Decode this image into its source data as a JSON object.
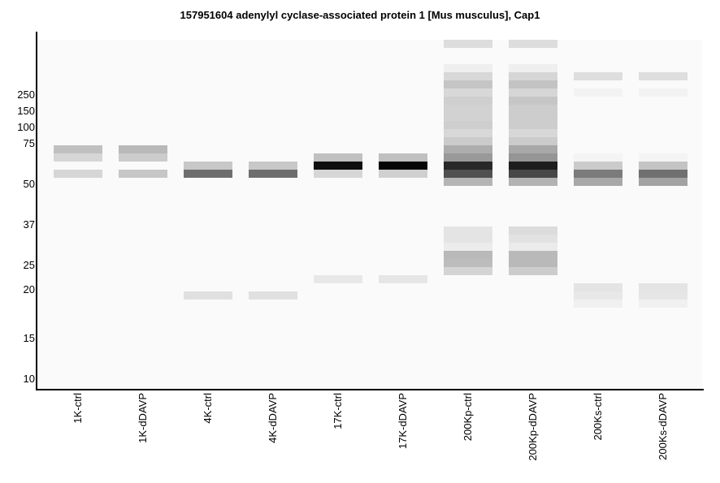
{
  "chart_data": {
    "type": "heatmap",
    "subtype": "virtual-gel",
    "title": "157951604 adenylyl cyclase-associated protein 1 [Mus musculus], Cap1",
    "xlabel": "",
    "ylabel": "",
    "slice_units": "gel slice index (0 = top)",
    "markers": [
      {
        "label": "250",
        "slice": 6.8
      },
      {
        "label": "150",
        "slice": 8.8
      },
      {
        "label": "100",
        "slice": 10.8
      },
      {
        "label": "75",
        "slice": 12.8
      },
      {
        "label": "50",
        "slice": 17.8
      },
      {
        "label": "37",
        "slice": 22.8
      },
      {
        "label": "25",
        "slice": 27.8
      },
      {
        "label": "20",
        "slice": 30.8
      },
      {
        "label": "15",
        "slice": 36.8
      },
      {
        "label": "10",
        "slice": 41.8
      }
    ],
    "lanes": [
      {
        "label": "1K-ctrl",
        "bands": [
          [
            13,
            "#c0c0c0"
          ],
          [
            14,
            "#d6d6d6"
          ],
          [
            16,
            "#d6d6d6"
          ]
        ]
      },
      {
        "label": "1K-dDAVP",
        "bands": [
          [
            13,
            "#b9b9b9"
          ],
          [
            14,
            "#cccccc"
          ],
          [
            16,
            "#c6c6c6"
          ]
        ]
      },
      {
        "label": "4K-ctrl",
        "bands": [
          [
            15,
            "#c8c8c8"
          ],
          [
            16,
            "#6e6e6e"
          ],
          [
            31,
            "#e0e0e0"
          ]
        ]
      },
      {
        "label": "4K-dDAVP",
        "bands": [
          [
            15,
            "#c8c8c8"
          ],
          [
            16,
            "#6e6e6e"
          ],
          [
            31,
            "#e0e0e0"
          ]
        ]
      },
      {
        "label": "17K-ctrl",
        "bands": [
          [
            14,
            "#c0c0c0"
          ],
          [
            15,
            "#0f0f0f"
          ],
          [
            16,
            "#d6d6d6"
          ],
          [
            29,
            "#e8e8e8"
          ]
        ]
      },
      {
        "label": "17K-dDAVP",
        "bands": [
          [
            14,
            "#c0c0c0"
          ],
          [
            15,
            "#050505"
          ],
          [
            16,
            "#d0d0d0"
          ],
          [
            29,
            "#e6e6e6"
          ]
        ]
      },
      {
        "label": "200Kp-ctrl",
        "bands": [
          [
            0,
            "#dddddd"
          ],
          [
            3,
            "#efefef"
          ],
          [
            4,
            "#d8d8d8"
          ],
          [
            5,
            "#c5c5c5"
          ],
          [
            6,
            "#d8d8d8"
          ],
          [
            7,
            "#cfcfcf"
          ],
          [
            8,
            "#d2d2d2"
          ],
          [
            9,
            "#d2d2d2"
          ],
          [
            10,
            "#cecece"
          ],
          [
            11,
            "#d8d8d8"
          ],
          [
            12,
            "#cbcbcb"
          ],
          [
            13,
            "#adadad"
          ],
          [
            14,
            "#999999"
          ],
          [
            15,
            "#282828"
          ],
          [
            16,
            "#505050"
          ],
          [
            17,
            "#b4b4b4"
          ],
          [
            23,
            "#e4e4e4"
          ],
          [
            24,
            "#e4e4e4"
          ],
          [
            25,
            "#ececec"
          ],
          [
            26,
            "#b9b9b9"
          ],
          [
            27,
            "#bcbcbc"
          ],
          [
            28,
            "#d4d4d4"
          ]
        ]
      },
      {
        "label": "200Kp-dDAVP",
        "bands": [
          [
            0,
            "#dddddd"
          ],
          [
            3,
            "#efefef"
          ],
          [
            4,
            "#d6d6d6"
          ],
          [
            5,
            "#c3c3c3"
          ],
          [
            6,
            "#d6d6d6"
          ],
          [
            7,
            "#c6c6c6"
          ],
          [
            8,
            "#cdcdcd"
          ],
          [
            9,
            "#cccccc"
          ],
          [
            10,
            "#cdcdcd"
          ],
          [
            11,
            "#d8d8d8"
          ],
          [
            12,
            "#cbcbcb"
          ],
          [
            13,
            "#a8a8a8"
          ],
          [
            14,
            "#959595"
          ],
          [
            15,
            "#1d1d1d"
          ],
          [
            16,
            "#474747"
          ],
          [
            17,
            "#b2b2b2"
          ],
          [
            23,
            "#dcdcdc"
          ],
          [
            24,
            "#e2e2e2"
          ],
          [
            25,
            "#ebebeb"
          ],
          [
            26,
            "#b9b9b9"
          ],
          [
            27,
            "#b9b9b9"
          ],
          [
            28,
            "#cccccc"
          ]
        ]
      },
      {
        "label": "200Ks-ctrl",
        "bands": [
          [
            4,
            "#dedede"
          ],
          [
            6,
            "#f2f2f2"
          ],
          [
            14,
            "#f4f4f4"
          ],
          [
            15,
            "#cbcbcb"
          ],
          [
            16,
            "#7b7b7b"
          ],
          [
            17,
            "#a8a8a8"
          ],
          [
            30,
            "#e4e4e4"
          ],
          [
            31,
            "#e8e8e8"
          ],
          [
            32,
            "#f0f0f0"
          ]
        ]
      },
      {
        "label": "200Ks-dDAVP",
        "bands": [
          [
            4,
            "#dedede"
          ],
          [
            6,
            "#f2f2f2"
          ],
          [
            14,
            "#f4f4f4"
          ],
          [
            15,
            "#c4c4c4"
          ],
          [
            16,
            "#707070"
          ],
          [
            17,
            "#a2a2a2"
          ],
          [
            30,
            "#e4e4e4"
          ],
          [
            31,
            "#e6e6e6"
          ],
          [
            32,
            "#f0f0f0"
          ]
        ]
      }
    ]
  }
}
